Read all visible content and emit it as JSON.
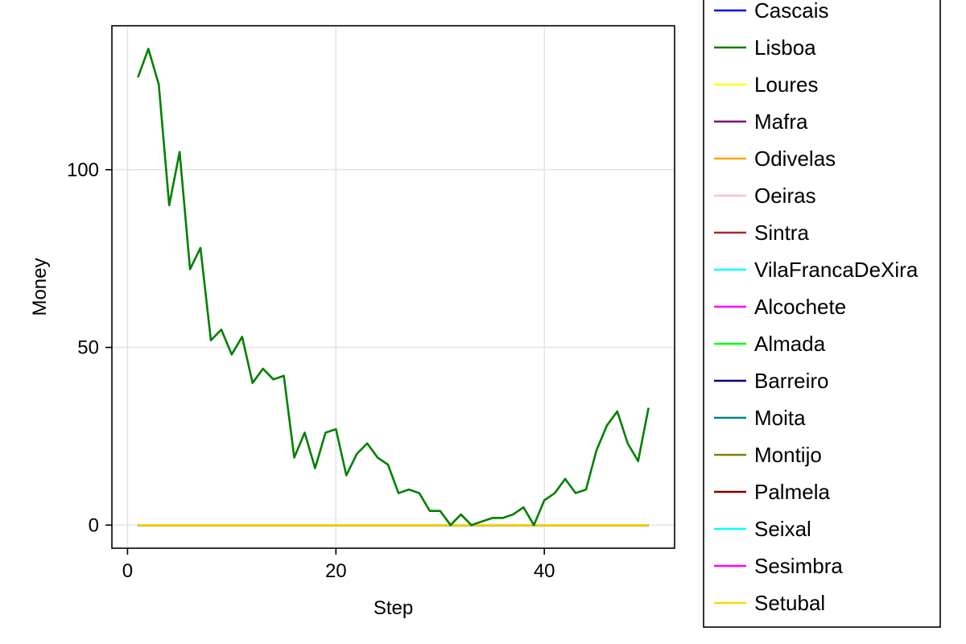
{
  "chart_data": {
    "type": "line",
    "title": "",
    "xlabel": "Step",
    "ylabel": "Money",
    "xlim": [
      -1.5,
      52.5
    ],
    "ylim": [
      -6.5,
      140.5
    ],
    "x_ticks": [
      0,
      20,
      40
    ],
    "x_tick_labels": [
      "0",
      "20",
      "40"
    ],
    "y_ticks": [
      0,
      50,
      100
    ],
    "y_tick_labels": [
      "0",
      "50",
      "100"
    ],
    "grid": true,
    "legend_position": "right",
    "series": [
      {
        "name": "Cascais",
        "color": "#0000ff",
        "values": "zeros"
      },
      {
        "name": "Lisboa",
        "color": "#008000",
        "values": "lisboa"
      },
      {
        "name": "Loures",
        "color": "#ffff00",
        "values": "zeros"
      },
      {
        "name": "Mafra",
        "color": "#800080",
        "values": "zeros"
      },
      {
        "name": "Odivelas",
        "color": "#ffa500",
        "values": "zeros"
      },
      {
        "name": "Oeiras",
        "color": "#ffc0cb",
        "values": "zeros"
      },
      {
        "name": "Sintra",
        "color": "#a52a2a",
        "values": "zeros"
      },
      {
        "name": "VilaFrancaDeXira",
        "color": "#00ffff",
        "values": "zeros"
      },
      {
        "name": "Alcochete",
        "color": "#ff00ff",
        "values": "zeros"
      },
      {
        "name": "Almada",
        "color": "#00ff00",
        "values": "zeros"
      },
      {
        "name": "Barreiro",
        "color": "#000080",
        "values": "zeros"
      },
      {
        "name": "Moita",
        "color": "#008080",
        "values": "zeros"
      },
      {
        "name": "Montijo",
        "color": "#808000",
        "values": "zeros"
      },
      {
        "name": "Palmela",
        "color": "#800000",
        "values": "zeros"
      },
      {
        "name": "Seixal",
        "color": "#00ffff",
        "values": "zeros"
      },
      {
        "name": "Sesimbra",
        "color": "#ff00ff",
        "values": "zeros"
      },
      {
        "name": "Setubal",
        "color": "#ffd700",
        "values": "zeros"
      }
    ],
    "x": [
      1,
      2,
      3,
      4,
      5,
      6,
      7,
      8,
      9,
      10,
      11,
      12,
      13,
      14,
      15,
      16,
      17,
      18,
      19,
      20,
      21,
      22,
      23,
      24,
      25,
      26,
      27,
      28,
      29,
      30,
      31,
      32,
      33,
      34,
      35,
      36,
      37,
      38,
      39,
      40,
      41,
      42,
      43,
      44,
      45,
      46,
      47,
      48,
      49,
      50
    ],
    "data": {
      "lisboa": [
        126,
        134,
        124,
        90,
        105,
        72,
        78,
        52,
        55,
        48,
        53,
        40,
        44,
        41,
        42,
        19,
        26,
        16,
        26,
        27,
        14,
        20,
        23,
        19,
        17,
        9,
        10,
        9,
        4,
        4,
        0,
        3,
        0,
        1,
        2,
        2,
        3,
        5,
        0,
        7,
        9,
        13,
        9,
        10,
        21,
        28,
        32,
        23,
        18,
        33
      ],
      "zeros": [
        0,
        0,
        0,
        0,
        0,
        0,
        0,
        0,
        0,
        0,
        0,
        0,
        0,
        0,
        0,
        0,
        0,
        0,
        0,
        0,
        0,
        0,
        0,
        0,
        0,
        0,
        0,
        0,
        0,
        0,
        0,
        0,
        0,
        0,
        0,
        0,
        0,
        0,
        0,
        0,
        0,
        0,
        0,
        0,
        0,
        0,
        0,
        0,
        0,
        0
      ]
    }
  }
}
